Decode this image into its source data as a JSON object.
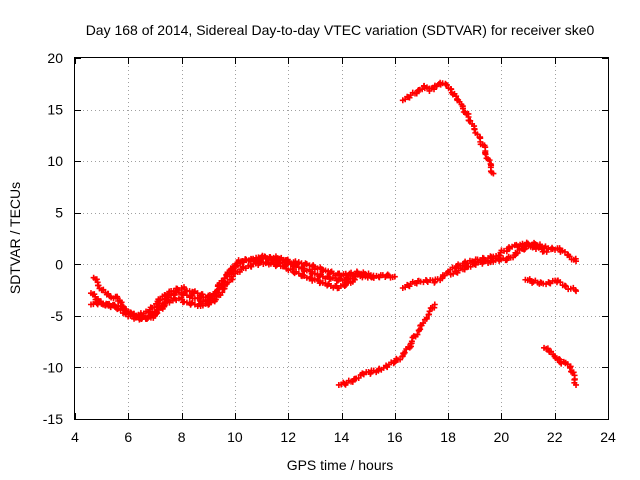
{
  "chart_data": {
    "type": "scatter",
    "title": "Day 168 of 2014, Sidereal Day-to-day VTEC variation (SDTVAR) for receiver ske0",
    "xlabel": "GPS time / hours",
    "ylabel": "SDTVAR / TECUs",
    "xlim": [
      4,
      24
    ],
    "ylim": [
      -15,
      20
    ],
    "xticks": [
      4,
      6,
      8,
      10,
      12,
      14,
      16,
      18,
      20,
      22,
      24
    ],
    "yticks": [
      -15,
      -10,
      -5,
      0,
      5,
      10,
      15,
      20
    ],
    "grid": true,
    "legend": "none",
    "marker": "plus",
    "color": "#ff0000",
    "series": [
      {
        "name": "track-main",
        "points": [
          [
            4.6,
            -2.8
          ],
          [
            4.8,
            -3.4
          ],
          [
            5.0,
            -3.8
          ],
          [
            5.3,
            -4.0
          ],
          [
            5.6,
            -4.3
          ],
          [
            5.9,
            -4.8
          ],
          [
            6.2,
            -5.1
          ],
          [
            6.5,
            -5.3
          ],
          [
            6.8,
            -5.0
          ],
          [
            7.0,
            -4.6
          ],
          [
            7.3,
            -3.8
          ],
          [
            7.6,
            -3.0
          ],
          [
            7.9,
            -2.7
          ],
          [
            8.2,
            -3.0
          ],
          [
            8.5,
            -3.3
          ],
          [
            8.8,
            -3.6
          ],
          [
            9.1,
            -3.3
          ],
          [
            9.4,
            -2.4
          ],
          [
            9.7,
            -1.2
          ],
          [
            10.0,
            -0.2
          ],
          [
            10.3,
            0.3
          ],
          [
            10.6,
            0.3
          ],
          [
            10.9,
            0.5
          ],
          [
            11.2,
            0.6
          ],
          [
            11.5,
            0.4
          ],
          [
            11.8,
            0.2
          ],
          [
            12.1,
            0.0
          ],
          [
            12.4,
            -0.3
          ],
          [
            12.7,
            -0.6
          ],
          [
            13.0,
            -0.9
          ],
          [
            13.3,
            -1.2
          ],
          [
            13.6,
            -1.4
          ],
          [
            13.9,
            -1.5
          ],
          [
            14.2,
            -1.4
          ],
          [
            14.5,
            -1.2
          ],
          [
            14.8,
            -1.1
          ],
          [
            15.1,
            -1.2
          ],
          [
            15.4,
            -1.2
          ],
          [
            15.7,
            -1.1
          ],
          [
            16.0,
            -1.2
          ]
        ]
      },
      {
        "name": "track-main-upper",
        "points": [
          [
            4.7,
            -1.3
          ],
          [
            5.0,
            -2.5
          ],
          [
            5.3,
            -3.1
          ],
          [
            5.6,
            -3.3
          ],
          [
            5.9,
            -4.6
          ],
          [
            6.2,
            -4.8
          ],
          [
            6.5,
            -4.9
          ],
          [
            6.8,
            -4.6
          ],
          [
            7.1,
            -3.6
          ],
          [
            7.4,
            -3.0
          ],
          [
            7.7,
            -2.6
          ],
          [
            8.0,
            -2.3
          ],
          [
            8.3,
            -2.6
          ],
          [
            8.6,
            -2.8
          ],
          [
            8.9,
            -3.2
          ],
          [
            9.2,
            -2.9
          ],
          [
            9.5,
            -1.6
          ],
          [
            9.8,
            -0.6
          ],
          [
            10.1,
            0.2
          ],
          [
            10.4,
            0.5
          ],
          [
            10.7,
            0.4
          ],
          [
            11.0,
            0.7
          ],
          [
            11.3,
            0.7
          ],
          [
            11.6,
            0.6
          ],
          [
            11.9,
            0.4
          ],
          [
            12.2,
            0.2
          ],
          [
            12.5,
            0.1
          ],
          [
            12.8,
            -0.1
          ],
          [
            13.1,
            -0.4
          ],
          [
            13.4,
            -0.6
          ],
          [
            13.7,
            -0.9
          ],
          [
            14.0,
            -1.1
          ],
          [
            14.3,
            -0.9
          ],
          [
            14.6,
            -0.8
          ],
          [
            14.9,
            -1.0
          ],
          [
            15.2,
            -1.1
          ]
        ]
      },
      {
        "name": "track-main-lower",
        "points": [
          [
            4.6,
            -3.9
          ],
          [
            4.9,
            -3.7
          ],
          [
            5.2,
            -3.9
          ],
          [
            5.5,
            -4.1
          ],
          [
            5.8,
            -4.2
          ],
          [
            6.1,
            -4.7
          ],
          [
            6.4,
            -5.2
          ],
          [
            6.7,
            -5.3
          ],
          [
            7.0,
            -5.0
          ],
          [
            7.3,
            -4.1
          ],
          [
            7.6,
            -3.5
          ],
          [
            7.9,
            -3.3
          ],
          [
            8.2,
            -3.7
          ],
          [
            8.5,
            -3.9
          ],
          [
            8.8,
            -4.0
          ],
          [
            9.1,
            -3.7
          ],
          [
            9.4,
            -3.0
          ],
          [
            9.7,
            -1.9
          ],
          [
            10.0,
            -0.9
          ],
          [
            10.3,
            -0.3
          ],
          [
            10.6,
            -0.2
          ],
          [
            10.9,
            0.1
          ],
          [
            11.2,
            0.2
          ],
          [
            11.5,
            0.0
          ],
          [
            11.8,
            -0.2
          ],
          [
            12.1,
            -0.5
          ],
          [
            12.4,
            -0.9
          ],
          [
            12.7,
            -1.3
          ],
          [
            13.0,
            -1.5
          ],
          [
            13.3,
            -1.8
          ],
          [
            13.6,
            -2.1
          ],
          [
            13.9,
            -2.3
          ],
          [
            14.2,
            -1.8
          ],
          [
            14.5,
            -1.5
          ]
        ]
      },
      {
        "name": "track-mid-east",
        "points": [
          [
            16.3,
            -2.3
          ],
          [
            16.6,
            -1.9
          ],
          [
            16.9,
            -1.6
          ],
          [
            17.2,
            -1.6
          ],
          [
            17.5,
            -1.7
          ],
          [
            17.8,
            -1.2
          ],
          [
            18.0,
            -0.7
          ],
          [
            18.3,
            -0.3
          ],
          [
            18.6,
            0.1
          ],
          [
            18.9,
            0.3
          ],
          [
            19.2,
            0.4
          ],
          [
            19.5,
            0.6
          ],
          [
            19.8,
            0.8
          ],
          [
            20.1,
            1.3
          ],
          [
            20.4,
            1.7
          ],
          [
            20.7,
            1.9
          ],
          [
            21.0,
            2.0
          ],
          [
            21.3,
            1.9
          ],
          [
            21.6,
            1.6
          ],
          [
            21.9,
            1.6
          ],
          [
            22.2,
            1.4
          ],
          [
            22.5,
            0.9
          ],
          [
            22.8,
            0.3
          ]
        ]
      },
      {
        "name": "track-mid-east-lower",
        "points": [
          [
            18.1,
            -1.0
          ],
          [
            18.4,
            -0.6
          ],
          [
            18.7,
            -0.2
          ],
          [
            19.0,
            0.0
          ],
          [
            19.3,
            0.2
          ],
          [
            19.6,
            0.3
          ],
          [
            19.9,
            0.5
          ],
          [
            20.2,
            0.4
          ],
          [
            20.5,
            0.9
          ],
          [
            20.8,
            1.5
          ],
          [
            21.1,
            1.7
          ],
          [
            21.4,
            1.6
          ],
          [
            21.7,
            1.2
          ]
        ]
      },
      {
        "name": "track-east-flat",
        "points": [
          [
            20.9,
            -1.5
          ],
          [
            21.2,
            -1.7
          ],
          [
            21.5,
            -1.8
          ],
          [
            21.8,
            -1.8
          ],
          [
            22.1,
            -1.6
          ],
          [
            22.4,
            -2.1
          ],
          [
            22.8,
            -2.6
          ]
        ]
      },
      {
        "name": "track-rising",
        "points": [
          [
            13.9,
            -11.7
          ],
          [
            14.2,
            -11.5
          ],
          [
            14.5,
            -11.1
          ],
          [
            14.8,
            -10.6
          ],
          [
            15.1,
            -10.5
          ],
          [
            15.4,
            -10.2
          ],
          [
            15.7,
            -9.9
          ],
          [
            16.0,
            -9.5
          ],
          [
            16.3,
            -8.9
          ],
          [
            16.6,
            -7.7
          ],
          [
            16.9,
            -6.4
          ],
          [
            17.2,
            -5.2
          ],
          [
            17.5,
            -3.9
          ]
        ]
      },
      {
        "name": "track-descending",
        "points": [
          [
            16.3,
            15.9
          ],
          [
            16.6,
            16.4
          ],
          [
            16.9,
            16.9
          ],
          [
            17.1,
            17.3
          ],
          [
            17.3,
            16.8
          ],
          [
            17.5,
            17.2
          ],
          [
            17.7,
            17.6
          ],
          [
            17.9,
            17.5
          ],
          [
            18.1,
            17.0
          ],
          [
            18.3,
            16.3
          ],
          [
            18.5,
            15.5
          ],
          [
            18.7,
            14.6
          ],
          [
            18.9,
            13.6
          ],
          [
            19.1,
            12.6
          ],
          [
            19.3,
            11.6
          ],
          [
            19.5,
            10.2
          ],
          [
            19.7,
            8.8
          ]
        ]
      },
      {
        "name": "track-east-low",
        "points": [
          [
            21.6,
            -8.1
          ],
          [
            21.8,
            -8.5
          ],
          [
            22.0,
            -8.9
          ],
          [
            22.2,
            -9.5
          ],
          [
            22.4,
            -9.6
          ],
          [
            22.6,
            -9.9
          ],
          [
            22.8,
            -11.7
          ]
        ]
      }
    ]
  }
}
